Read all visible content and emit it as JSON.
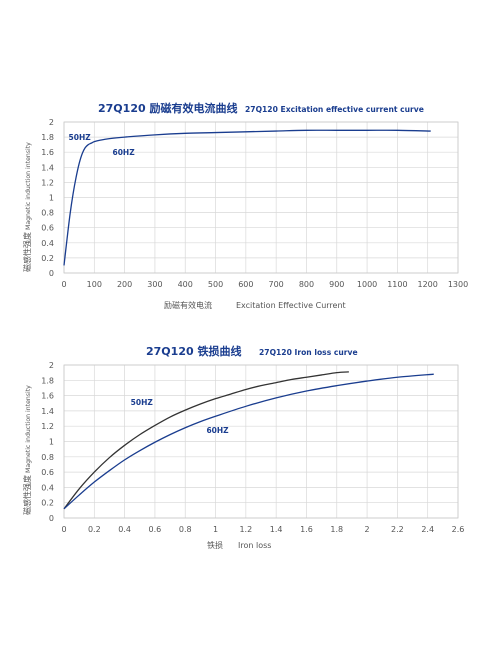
{
  "chart_data": [
    {
      "type": "line",
      "title_zh": "27Q120 励磁有效电流曲线",
      "title_en": "27Q120 Excitation effective current curve",
      "xlabel_zh": "励磁有效电流",
      "xlabel_en": "Excitation Effective Current",
      "ylabel_zh": "磁感性强度",
      "ylabel_en": "Magnetic induction intensity",
      "xlim": [
        0,
        1300
      ],
      "ylim": [
        0,
        2
      ],
      "x_ticks": [
        0,
        100,
        200,
        300,
        400,
        500,
        600,
        700,
        800,
        900,
        1000,
        1100,
        1200,
        1300
      ],
      "y_ticks": [
        0,
        0.2,
        0.4,
        0.6,
        0.8,
        1,
        1.2,
        1.4,
        1.6,
        1.8,
        2
      ],
      "grid": true,
      "annotations": [
        {
          "text": "50HZ",
          "x": 15,
          "y": 1.76
        },
        {
          "text": "60HZ",
          "x": 160,
          "y": 1.56
        }
      ],
      "series": [
        {
          "name": "",
          "color": "#1a3d8f",
          "x": [
            0,
            10,
            20,
            30,
            40,
            50,
            60,
            70,
            80,
            90,
            100,
            120,
            150,
            200,
            300,
            400,
            500,
            600,
            700,
            800,
            900,
            1000,
            1100,
            1210
          ],
          "y": [
            0.1,
            0.45,
            0.78,
            1.05,
            1.27,
            1.45,
            1.58,
            1.66,
            1.7,
            1.72,
            1.74,
            1.76,
            1.78,
            1.8,
            1.83,
            1.85,
            1.86,
            1.87,
            1.88,
            1.89,
            1.89,
            1.89,
            1.89,
            1.88
          ]
        }
      ]
    },
    {
      "type": "line",
      "title_zh": "27Q120 铁损曲线",
      "title_en": "27Q120 Iron loss curve",
      "xlabel_zh": "铁损",
      "xlabel_en": "Iron loss",
      "ylabel_zh": "磁感性强度",
      "ylabel_en": "Magnetic induction intensity",
      "xlim": [
        0,
        2.6
      ],
      "ylim": [
        0,
        2
      ],
      "x_ticks": [
        0,
        0.2,
        0.4,
        0.6,
        0.8,
        1,
        1.2,
        1.4,
        1.6,
        1.8,
        2,
        2.2,
        2.4,
        2.6
      ],
      "y_ticks": [
        0,
        0.2,
        0.4,
        0.6,
        0.8,
        1,
        1.2,
        1.4,
        1.6,
        1.8,
        2
      ],
      "grid": true,
      "annotations": [
        {
          "text": "50HZ",
          "x": 0.44,
          "y": 1.48
        },
        {
          "text": "60HZ",
          "x": 0.94,
          "y": 1.11
        }
      ],
      "series": [
        {
          "name": "50HZ",
          "color": "#333333",
          "x": [
            0,
            0.1,
            0.2,
            0.3,
            0.4,
            0.5,
            0.6,
            0.7,
            0.8,
            0.9,
            1.0,
            1.1,
            1.2,
            1.3,
            1.4,
            1.5,
            1.6,
            1.7,
            1.8,
            1.88
          ],
          "y": [
            0.12,
            0.38,
            0.6,
            0.79,
            0.95,
            1.09,
            1.21,
            1.32,
            1.41,
            1.49,
            1.56,
            1.62,
            1.68,
            1.73,
            1.77,
            1.81,
            1.84,
            1.87,
            1.9,
            1.91
          ]
        },
        {
          "name": "60HZ",
          "color": "#1a3d8f",
          "x": [
            0,
            0.1,
            0.2,
            0.3,
            0.4,
            0.5,
            0.6,
            0.7,
            0.8,
            0.9,
            1.0,
            1.2,
            1.4,
            1.6,
            1.8,
            2.0,
            2.2,
            2.44
          ],
          "y": [
            0.12,
            0.3,
            0.47,
            0.62,
            0.76,
            0.88,
            0.99,
            1.09,
            1.18,
            1.26,
            1.33,
            1.46,
            1.57,
            1.66,
            1.73,
            1.79,
            1.84,
            1.88
          ]
        }
      ]
    }
  ]
}
